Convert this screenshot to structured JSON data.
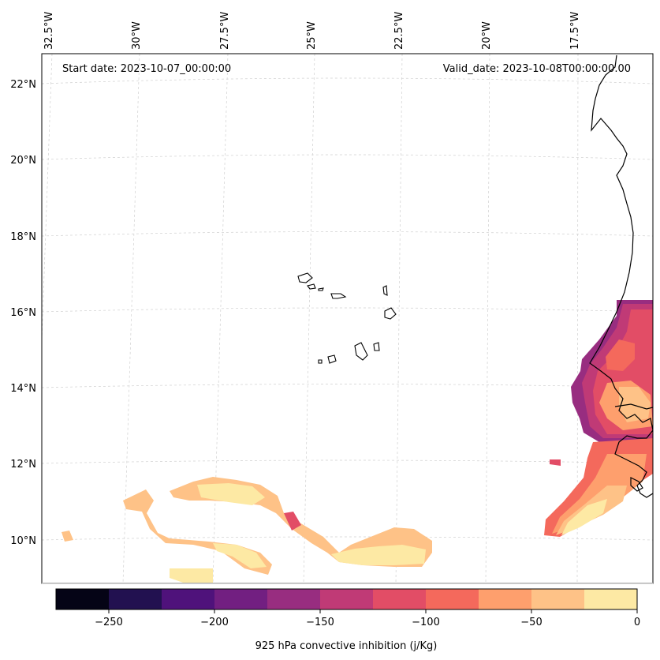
{
  "map": {
    "start_date": "Start date: 2023-10-07_00:00:00",
    "valid_date": "Valid_date: 2023-10-08T00:00:00.00",
    "longitude_labels": [
      "32.5°W",
      "30°W",
      "27.5°W",
      "25°W",
      "22.5°W",
      "20°W",
      "17.5°W"
    ],
    "latitude_labels": [
      "22°N",
      "20°N",
      "18°N",
      "16°N",
      "14°N",
      "12°N",
      "10°N"
    ],
    "gridlines": "dashed light gray",
    "coastline_color": "#000000"
  },
  "colorbar": {
    "title": "925 hPa convective inhibition (j/Kg)",
    "tick_labels": [
      "−250",
      "−200",
      "−150",
      "−100",
      "−50",
      "0"
    ],
    "levels": [
      -275,
      -250,
      -225,
      -200,
      -175,
      -150,
      -125,
      -100,
      -75,
      -50,
      -25,
      0
    ],
    "colors": [
      "#050416",
      "#221150",
      "#4f127b",
      "#721f81",
      "#982d80",
      "#c03a76",
      "#e24d66",
      "#f4695c",
      "#fe9f6d",
      "#fec287",
      "#fde9a4"
    ]
  }
}
